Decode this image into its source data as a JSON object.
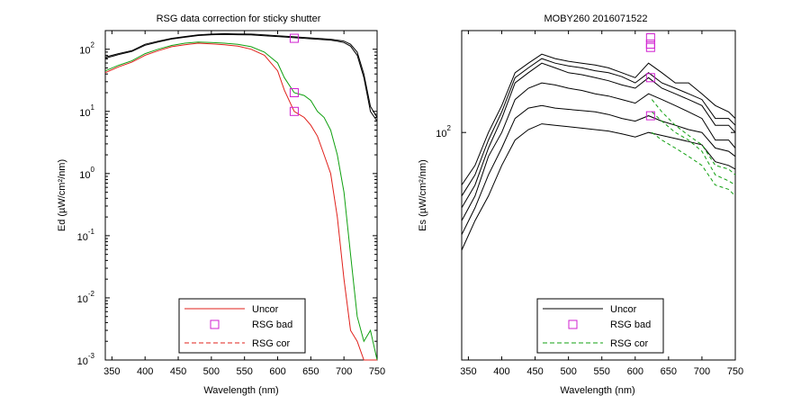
{
  "chart_data": [
    {
      "type": "line",
      "title": "RSG data correction for sticky shutter",
      "xlabel": "Wavelength (nm)",
      "ylabel": "Ed (µW/cm²/nm)",
      "xlim": [
        340,
        750
      ],
      "ylim_log10": [
        -3,
        2.3
      ],
      "y_scale": "log",
      "x_ticks": [
        "350",
        "400",
        "450",
        "500",
        "550",
        "600",
        "650",
        "700",
        "750"
      ],
      "y_tick_base": "10",
      "y_ticks": [
        "2",
        "1",
        "0",
        "-1",
        "-2",
        "-3"
      ],
      "legend": {
        "placement": "bottom-center",
        "entries": [
          {
            "label": "Uncor",
            "style": "solid",
            "color": "#e0201b"
          },
          {
            "label": "RSG bad",
            "style": "marker",
            "color": "#d020d0"
          },
          {
            "label": "RSG cor",
            "style": "dashed",
            "color": "#e0201b"
          }
        ]
      },
      "series": [
        {
          "color": "#000000",
          "x": [
            340,
            360,
            380,
            400,
            420,
            440,
            460,
            480,
            500,
            520,
            540,
            560,
            580,
            600,
            620,
            640,
            660,
            680,
            690,
            700,
            710,
            720,
            730,
            740,
            750
          ],
          "y": [
            75,
            85,
            95,
            120,
            135,
            150,
            160,
            170,
            175,
            178,
            176,
            175,
            170,
            165,
            160,
            155,
            150,
            145,
            140,
            135,
            120,
            90,
            40,
            12,
            8
          ]
        },
        {
          "color": "#000000",
          "x": [
            340,
            360,
            380,
            400,
            420,
            440,
            460,
            480,
            500,
            520,
            540,
            560,
            580,
            600,
            620,
            640,
            660,
            680,
            690,
            700,
            710,
            720,
            730,
            740,
            750
          ],
          "y": [
            72,
            82,
            92,
            116,
            131,
            146,
            156,
            166,
            171,
            173,
            171,
            170,
            165,
            160,
            155,
            150,
            145,
            140,
            135,
            128,
            112,
            80,
            35,
            10,
            7
          ]
        },
        {
          "color": "#10a010",
          "x": [
            340,
            360,
            380,
            400,
            420,
            440,
            460,
            480,
            500,
            520,
            540,
            560,
            580,
            600,
            610,
            625,
            640,
            650,
            660,
            670,
            680,
            690,
            700,
            710,
            720,
            730,
            740,
            750
          ],
          "y": [
            45,
            55,
            65,
            85,
            100,
            115,
            125,
            130,
            128,
            125,
            120,
            110,
            90,
            60,
            35,
            20,
            18,
            15,
            10,
            8,
            5,
            2,
            0.5,
            0.05,
            0.005,
            0.002,
            0.003,
            0.001
          ]
        },
        {
          "color": "#e0201b",
          "x": [
            340,
            360,
            380,
            400,
            420,
            440,
            460,
            480,
            500,
            520,
            540,
            560,
            580,
            600,
            610,
            625,
            640,
            650,
            660,
            670,
            680,
            690,
            700,
            710,
            720,
            730,
            740,
            750
          ],
          "y": [
            42,
            52,
            62,
            80,
            95,
            110,
            118,
            125,
            122,
            118,
            112,
            100,
            80,
            45,
            22,
            10,
            8,
            6,
            4,
            2,
            1,
            0.2,
            0.02,
            0.003,
            0.002,
            0.001,
            0.001,
            0.001
          ]
        }
      ],
      "rsg_bad_markers": {
        "color": "#d020d0",
        "x": [
          625,
          625,
          625
        ],
        "y": [
          150,
          20,
          10
        ]
      }
    },
    {
      "type": "line",
      "title": "MOBY260  2016071522",
      "xlabel": "Wavelength (nm)",
      "ylabel": "Es (µW/cm²/nm)",
      "xlim": [
        340,
        750
      ],
      "y_scale": "log",
      "ylim_log10": [
        1.33,
        2.3
      ],
      "x_ticks": [
        "350",
        "400",
        "450",
        "500",
        "550",
        "600",
        "650",
        "700",
        "750"
      ],
      "y_tick_base": "10",
      "y_ticks": [
        "2"
      ],
      "legend": {
        "placement": "bottom-center",
        "entries": [
          {
            "label": "Uncor",
            "style": "solid",
            "color": "#000000"
          },
          {
            "label": "RSG bad",
            "style": "marker",
            "color": "#d020d0"
          },
          {
            "label": "RSG cor",
            "style": "dashed",
            "color": "#10a010"
          }
        ]
      },
      "series": [
        {
          "color": "#000000",
          "x": [
            340,
            360,
            380,
            400,
            420,
            440,
            460,
            480,
            500,
            520,
            540,
            560,
            580,
            600,
            620,
            640,
            660,
            680,
            700,
            720,
            740,
            750
          ],
          "y": [
            70,
            80,
            100,
            120,
            150,
            160,
            170,
            165,
            162,
            160,
            158,
            155,
            150,
            145,
            160,
            150,
            140,
            140,
            130,
            120,
            115,
            110
          ]
        },
        {
          "color": "#000000",
          "x": [
            340,
            360,
            380,
            400,
            420,
            440,
            460,
            480,
            500,
            520,
            540,
            560,
            580,
            600,
            620,
            640,
            660,
            680,
            700,
            720,
            740,
            750
          ],
          "y": [
            65,
            75,
            95,
            115,
            145,
            155,
            165,
            160,
            157,
            155,
            152,
            150,
            146,
            140,
            150,
            140,
            135,
            130,
            125,
            110,
            110,
            105
          ]
        },
        {
          "color": "#000000",
          "x": [
            340,
            360,
            380,
            400,
            420,
            440,
            460,
            480,
            500,
            520,
            540,
            560,
            580,
            600,
            620,
            640,
            660,
            680,
            700,
            720,
            740,
            750
          ],
          "y": [
            60,
            70,
            90,
            110,
            140,
            150,
            160,
            155,
            150,
            148,
            145,
            142,
            138,
            135,
            145,
            135,
            130,
            125,
            120,
            105,
            105,
            100
          ]
        },
        {
          "color": "#000000",
          "x": [
            340,
            360,
            380,
            400,
            420,
            440,
            460,
            480,
            500,
            520,
            540,
            560,
            580,
            600,
            620,
            640,
            660,
            680,
            700,
            720,
            740,
            750
          ],
          "y": [
            55,
            65,
            85,
            100,
            125,
            135,
            140,
            138,
            135,
            133,
            130,
            128,
            125,
            122,
            130,
            125,
            120,
            115,
            110,
            95,
            95,
            90
          ]
        },
        {
          "color": "#000000",
          "x": [
            340,
            360,
            380,
            400,
            420,
            440,
            460,
            480,
            500,
            520,
            540,
            560,
            580,
            600,
            620,
            640,
            660,
            680,
            700,
            720,
            740,
            750
          ],
          "y": [
            50,
            60,
            75,
            90,
            110,
            118,
            120,
            118,
            117,
            116,
            115,
            113,
            110,
            108,
            112,
            108,
            105,
            102,
            100,
            90,
            88,
            85
          ]
        },
        {
          "color": "#000000",
          "x": [
            340,
            360,
            380,
            400,
            420,
            440,
            460,
            480,
            500,
            520,
            540,
            560,
            580,
            600,
            620,
            640,
            660,
            680,
            700,
            720,
            740,
            750
          ],
          "y": [
            45,
            55,
            65,
            80,
            95,
            102,
            106,
            105,
            104,
            103,
            102,
            101,
            99,
            97,
            100,
            98,
            96,
            94,
            92,
            82,
            80,
            78
          ]
        },
        {
          "color": "#10a010",
          "x": [
            625,
            640,
            660,
            680,
            700,
            720,
            740,
            750
          ],
          "y": [
            125,
            115,
            105,
            98,
            92,
            80,
            78,
            75
          ]
        },
        {
          "color": "#10a010",
          "x": [
            625,
            640,
            660,
            680,
            700,
            720,
            740,
            750
          ],
          "y": [
            115,
            108,
            100,
            95,
            88,
            75,
            72,
            70
          ]
        },
        {
          "color": "#10a010",
          "x": [
            625,
            640,
            660,
            680,
            700,
            720,
            740,
            750
          ],
          "y": [
            100,
            95,
            90,
            85,
            80,
            70,
            68,
            65
          ]
        }
      ],
      "rsg_bad_markers": {
        "color": "#d020d0",
        "x": [
          623,
          623,
          623,
          623,
          623
        ],
        "y": [
          190,
          182,
          178,
          145,
          112
        ]
      }
    }
  ]
}
